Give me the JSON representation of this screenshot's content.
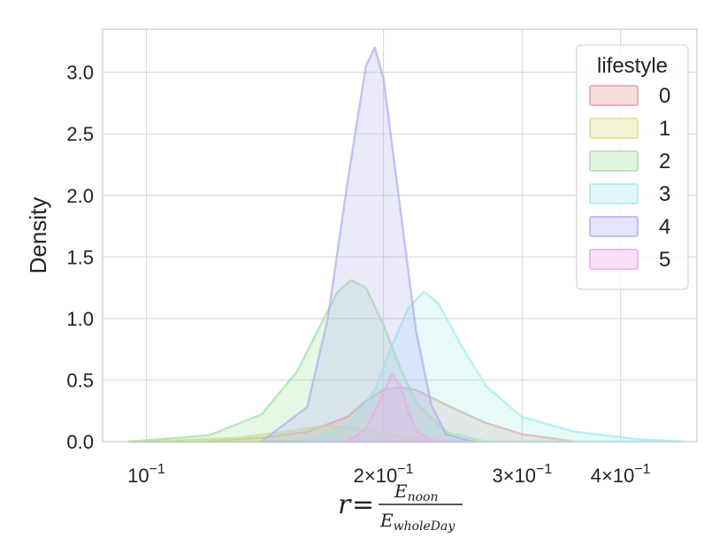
{
  "chart_data": {
    "type": "area",
    "xscale": "log",
    "xlim": [
      0.088,
      0.5
    ],
    "ylim": [
      0,
      3.35
    ],
    "yticks": [
      0.0,
      0.5,
      1.0,
      1.5,
      2.0,
      2.5,
      3.0
    ],
    "ytick_labels": [
      "0.0",
      "0.5",
      "1.0",
      "1.5",
      "2.0",
      "2.5",
      "3.0"
    ],
    "xtick_values": [
      0.1,
      0.2,
      0.3,
      0.4
    ],
    "xticks": [
      {
        "mantissa": "",
        "exponent": "−1",
        "base": "10"
      },
      {
        "mantissa": "2×",
        "exponent": "−1",
        "base": "10"
      },
      {
        "mantissa": "3×",
        "exponent": "−1",
        "base": "10"
      },
      {
        "mantissa": "4×",
        "exponent": "−1",
        "base": "10"
      }
    ],
    "ylabel": "Density",
    "xlabel": {
      "lhs": "r",
      "eq": "=",
      "num": "E",
      "num_sub": "noon",
      "den": "E",
      "den_sub": "wholeDay"
    },
    "grid": true,
    "legend": {
      "title": "lifestyle",
      "placement": "top-right"
    },
    "series": [
      {
        "name": "0",
        "color": "#e8a0a0",
        "x": [
          0.095,
          0.12,
          0.14,
          0.16,
          0.18,
          0.19,
          0.2,
          0.21,
          0.22,
          0.24,
          0.27,
          0.3,
          0.35
        ],
        "y": [
          0.0,
          0.01,
          0.03,
          0.08,
          0.2,
          0.33,
          0.42,
          0.44,
          0.42,
          0.3,
          0.15,
          0.06,
          0.0
        ]
      },
      {
        "name": "1",
        "color": "#e0e08a",
        "x": [
          0.095,
          0.11,
          0.13,
          0.15,
          0.17,
          0.19,
          0.21,
          0.24
        ],
        "y": [
          0.0,
          0.01,
          0.03,
          0.08,
          0.13,
          0.1,
          0.04,
          0.0
        ]
      },
      {
        "name": "2",
        "color": "#a6e3a6",
        "x": [
          0.095,
          0.12,
          0.14,
          0.155,
          0.165,
          0.175,
          0.182,
          0.19,
          0.2,
          0.21,
          0.22,
          0.24,
          0.27
        ],
        "y": [
          0.0,
          0.05,
          0.22,
          0.56,
          0.9,
          1.22,
          1.31,
          1.25,
          0.95,
          0.6,
          0.32,
          0.08,
          0.0
        ]
      },
      {
        "name": "3",
        "color": "#a6ecec",
        "x": [
          0.16,
          0.18,
          0.195,
          0.205,
          0.215,
          0.225,
          0.235,
          0.25,
          0.27,
          0.3,
          0.35,
          0.42,
          0.48
        ],
        "y": [
          0.0,
          0.12,
          0.42,
          0.78,
          1.08,
          1.22,
          1.12,
          0.8,
          0.45,
          0.2,
          0.08,
          0.02,
          0.0
        ]
      },
      {
        "name": "4",
        "color": "#b2b2f2",
        "x": [
          0.14,
          0.16,
          0.17,
          0.18,
          0.19,
          0.195,
          0.2,
          0.21,
          0.22,
          0.23,
          0.24,
          0.26
        ],
        "y": [
          0.0,
          0.28,
          1.0,
          2.1,
          3.05,
          3.2,
          2.95,
          1.9,
          0.9,
          0.3,
          0.06,
          0.0
        ]
      },
      {
        "name": "5",
        "color": "#eeaaee",
        "x": [
          0.18,
          0.19,
          0.2,
          0.205,
          0.21,
          0.215,
          0.22,
          0.23,
          0.24
        ],
        "y": [
          0.0,
          0.1,
          0.4,
          0.55,
          0.46,
          0.25,
          0.09,
          0.01,
          0.0
        ]
      }
    ]
  }
}
